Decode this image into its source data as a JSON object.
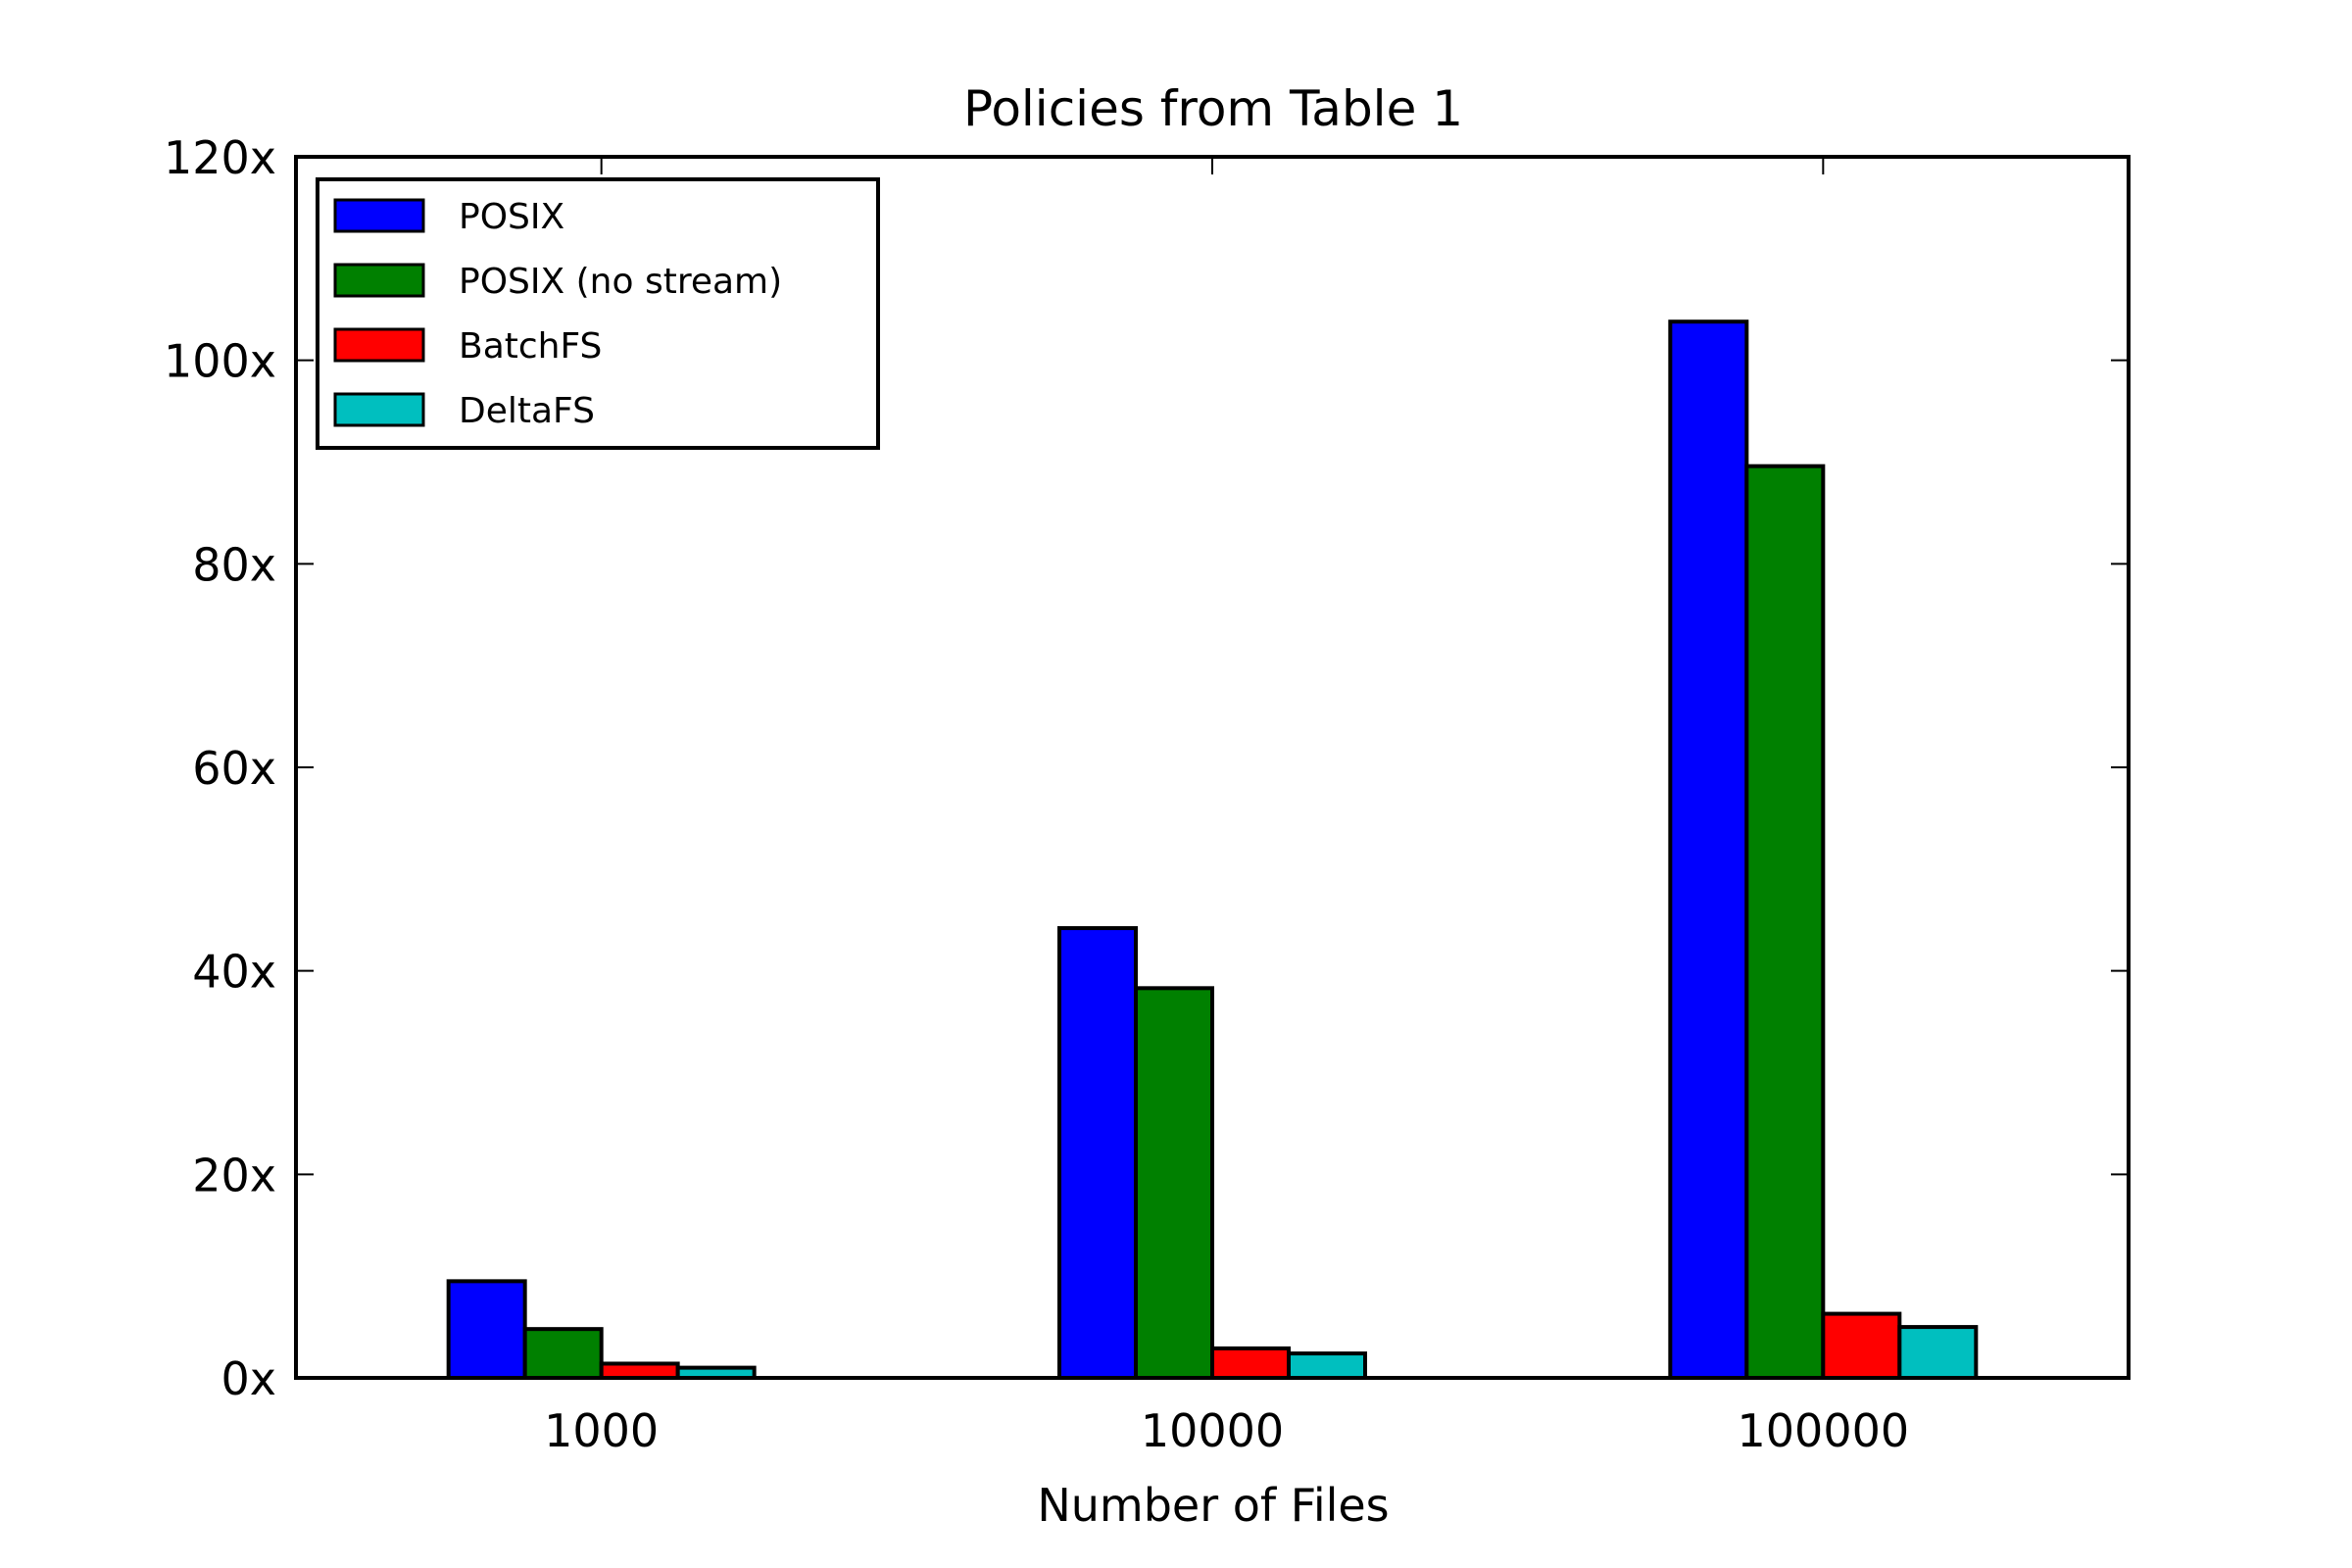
{
  "chart_data": {
    "type": "bar",
    "title": "Policies from Table 1",
    "xlabel": "Number of Files",
    "ylabel": "",
    "categories": [
      "1000",
      "10000",
      "100000"
    ],
    "ylim": [
      0,
      120
    ],
    "yticks": [
      0,
      20,
      40,
      60,
      80,
      100,
      120
    ],
    "ytick_labels": [
      "0x",
      "20x",
      "40x",
      "60x",
      "80x",
      "100x",
      "120x"
    ],
    "grid": false,
    "legend_position": "top-left",
    "series": [
      {
        "name": "POSIX",
        "color": "#0000ff",
        "values": [
          9.5,
          44.2,
          103.8
        ]
      },
      {
        "name": "POSIX (no stream)",
        "color": "#008000",
        "values": [
          4.8,
          38.3,
          89.6
        ]
      },
      {
        "name": "BatchFS",
        "color": "#ff0000",
        "values": [
          1.4,
          2.9,
          6.3
        ]
      },
      {
        "name": "DeltaFS",
        "color": "#00bfbf",
        "values": [
          1.0,
          2.4,
          5.0
        ]
      }
    ]
  }
}
